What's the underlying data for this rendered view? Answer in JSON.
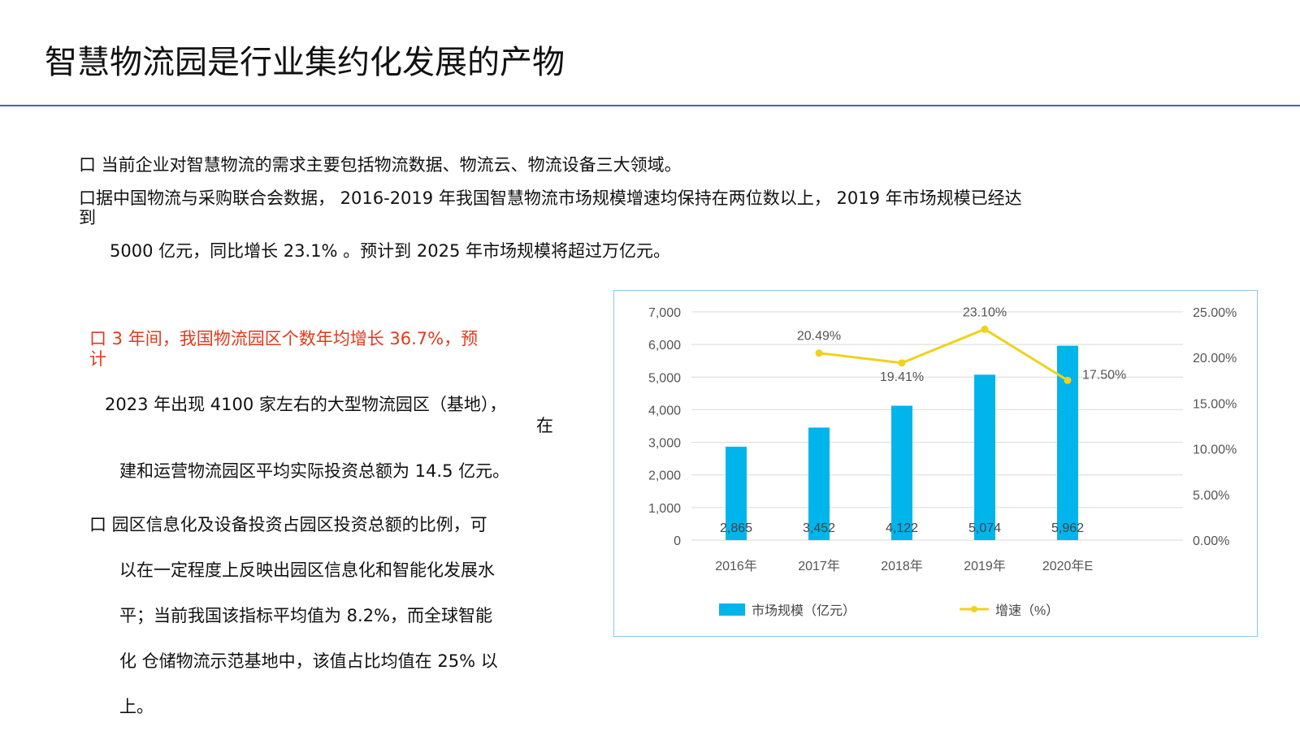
{
  "title": "智慧物流园是行业集约化发展的产物",
  "bullets": {
    "b1": "口 当前企业对智慧物流的需求主要包括物流数据、物流云、物流设备三大领域。",
    "b2_line1": "口据中国物流与采购联合会数据， 2016-2019 年我国智慧物流市场规模增速均保持在两位数以上， 2019 年市场规模已经达",
    "b2_line2": "到",
    "b2_line3": "5000 亿元，同比增长 23.1% 。预计到 2025 年市场规模将超过万亿元。",
    "b3_line1": "口 3 年间，我国物流园区个数年均增长 36.7%，预",
    "b3_line2": "计",
    "b3_line3": "2023 年出现 4100 家左右的大型物流园区（基地），",
    "b3_line4": "在",
    "b3_line5": "建和运营物流园区平均实际投资总额为 14.5 亿元。",
    "b4_line1": "口 园区信息化及设备投资占园区投资总额的比例，可",
    "b4_line2": "以在一定程度上反映出园区信息化和智能化发展水",
    "b4_line3": "平；当前我国该指标平均值为 8.2%，而全球智能",
    "b4_line4": "化 仓储物流示范基地中，该值占比均值在 25% 以",
    "b4_line5": "上。"
  },
  "colors": {
    "accent_rule": "#4b5bd6",
    "bullet_red": "#e23a1c",
    "bar": "#00b4ec",
    "line": "#f0d21a",
    "grid": "#d9d9d9",
    "chart_border": "#8cc6e8"
  },
  "chart_data": {
    "type": "bar",
    "categories": [
      "2016年",
      "2017年",
      "2018年",
      "2019年",
      "2020年E"
    ],
    "series": [
      {
        "name": "市场规模（亿元）",
        "type": "bar",
        "axis": "left",
        "values": [
          2865,
          3452,
          4122,
          5074,
          5962
        ],
        "labels": [
          "2,865",
          "3,452",
          "4,122",
          "5,074",
          "5,962"
        ]
      },
      {
        "name": "增速（%）",
        "type": "line",
        "axis": "right",
        "values": [
          null,
          20.49,
          19.41,
          23.1,
          17.5
        ],
        "labels": [
          "",
          "20.49%",
          "19.41%",
          "23.10%",
          "17.50%"
        ]
      }
    ],
    "left_axis": {
      "ylim": [
        0,
        7000
      ],
      "ticks": [
        "0",
        "1,000",
        "2,000",
        "3,000",
        "4,000",
        "5,000",
        "6,000",
        "7,000"
      ]
    },
    "right_axis": {
      "ylim": [
        0,
        25
      ],
      "tick_values": [
        0,
        5,
        10,
        15,
        20,
        25
      ],
      "ticks": [
        "0.00%",
        "5.00%",
        "10.00%",
        "15.00%",
        "20.00%",
        "25.00%"
      ]
    },
    "grid": true,
    "legend_position": "bottom"
  }
}
